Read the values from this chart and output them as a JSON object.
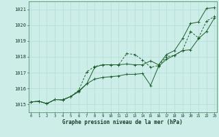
{
  "xlabel": "Graphe pression niveau de la mer (hPa)",
  "background_color": "#cdeee8",
  "grid_color": "#b0ddd4",
  "line_color": "#1a5c28",
  "x": [
    0,
    1,
    2,
    3,
    4,
    5,
    6,
    7,
    8,
    9,
    10,
    11,
    12,
    13,
    14,
    15,
    16,
    17,
    18,
    19,
    20,
    21,
    22,
    23
  ],
  "series1": [
    1015.15,
    1015.2,
    1015.05,
    1015.3,
    1015.3,
    1015.5,
    1015.8,
    1016.3,
    1017.35,
    1017.5,
    1017.5,
    1017.5,
    1017.55,
    1017.5,
    1017.5,
    1017.75,
    1017.5,
    1018.15,
    1018.4,
    1019.15,
    1020.1,
    1020.2,
    1021.05,
    1021.1
  ],
  "series2": [
    1015.15,
    1015.2,
    1015.05,
    1015.3,
    1015.28,
    1015.5,
    1015.9,
    1017.05,
    1017.4,
    1017.5,
    1017.5,
    1017.5,
    1018.2,
    1018.15,
    1017.8,
    1017.35,
    1017.45,
    1018.0,
    1018.1,
    1018.4,
    1019.6,
    1019.2,
    1020.25,
    1020.55
  ],
  "series3": [
    1015.15,
    1015.2,
    1015.05,
    1015.3,
    1015.28,
    1015.5,
    1015.85,
    1016.3,
    1016.6,
    1016.7,
    1016.75,
    1016.8,
    1016.9,
    1016.9,
    1016.95,
    1016.2,
    1017.4,
    1017.85,
    1018.1,
    1018.4,
    1018.45,
    1019.15,
    1019.6,
    1020.45
  ],
  "ylim": [
    1014.5,
    1021.5
  ],
  "yticks": [
    1015,
    1016,
    1017,
    1018,
    1019,
    1020,
    1021
  ],
  "xlim": [
    -0.3,
    23.3
  ]
}
